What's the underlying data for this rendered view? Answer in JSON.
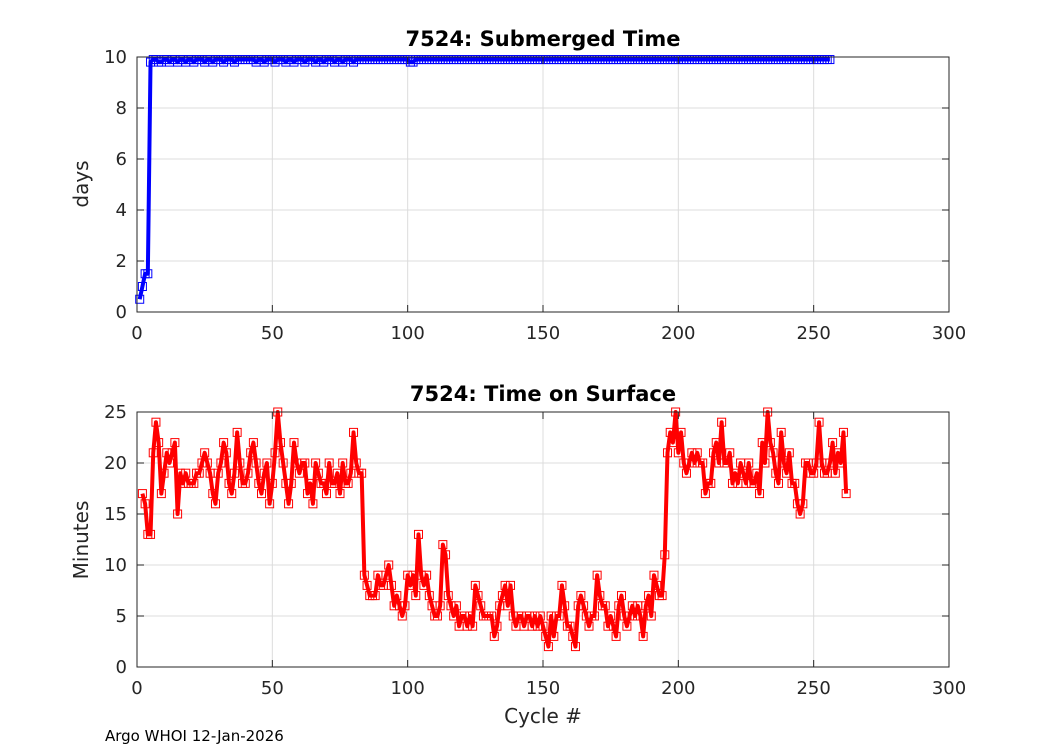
{
  "footer": "Argo WHOI 12-Jan-2026",
  "chart_data": [
    {
      "type": "line",
      "title": "7524: Submerged Time",
      "xlabel": "",
      "ylabel": "days",
      "xlim": [
        0,
        300
      ],
      "ylim": [
        0,
        10
      ],
      "xticks": [
        "0",
        "50",
        "100",
        "150",
        "200",
        "250",
        "300"
      ],
      "yticks": [
        "0",
        "2",
        "4",
        "6",
        "8",
        "10"
      ],
      "grid": true,
      "color": "#0000ff",
      "marker": "square",
      "series": [
        {
          "x_start": 1,
          "values": [
            0.5,
            1.0,
            1.5,
            1.5,
            9.8,
            9.9,
            9.9,
            9.8,
            9.8,
            9.9,
            9.9,
            9.8,
            9.9,
            9.9,
            9.8,
            9.9,
            9.9,
            9.8,
            9.9,
            9.9,
            9.8,
            9.9,
            9.9,
            9.9,
            9.8,
            9.9,
            9.9,
            9.8,
            9.9,
            9.9,
            9.9,
            9.8,
            9.9,
            9.9,
            9.9,
            9.8,
            9.9,
            9.9,
            9.9,
            9.9,
            9.9,
            9.9,
            9.9,
            9.8,
            9.9,
            9.9,
            9.8,
            9.9,
            9.9,
            9.9,
            9.8,
            9.9,
            9.9,
            9.9,
            9.8,
            9.9,
            9.9,
            9.8,
            9.9,
            9.9,
            9.9,
            9.8,
            9.9,
            9.9,
            9.9,
            9.8,
            9.9,
            9.9,
            9.8,
            9.9,
            9.9,
            9.9,
            9.8,
            9.9,
            9.9,
            9.8,
            9.9,
            9.9,
            9.9,
            9.8,
            9.9,
            9.9,
            9.9,
            9.9,
            9.9,
            9.9,
            9.9,
            9.9,
            9.9,
            9.9,
            9.9,
            9.9,
            9.9,
            9.9,
            9.9,
            9.9,
            9.9,
            9.9,
            9.9,
            9.9,
            9.8,
            9.8,
            9.9,
            9.9,
            9.9,
            9.9,
            9.9,
            9.9,
            9.9,
            9.9,
            9.9,
            9.9,
            9.9,
            9.9,
            9.9,
            9.9,
            9.9,
            9.9,
            9.9,
            9.9,
            9.9,
            9.9,
            9.9,
            9.9,
            9.9,
            9.9,
            9.9,
            9.9,
            9.9,
            9.9,
            9.9,
            9.9,
            9.9,
            9.9,
            9.9,
            9.9,
            9.9,
            9.9,
            9.9,
            9.9,
            9.9,
            9.9,
            9.9,
            9.9,
            9.9,
            9.9,
            9.9,
            9.9,
            9.9,
            9.9,
            9.9,
            9.9,
            9.9,
            9.9,
            9.9,
            9.9,
            9.9,
            9.9,
            9.9,
            9.9,
            9.9,
            9.9,
            9.9,
            9.9,
            9.9,
            9.9,
            9.9,
            9.9,
            9.9,
            9.9,
            9.9,
            9.9,
            9.9,
            9.9,
            9.9,
            9.9,
            9.9,
            9.9,
            9.9,
            9.9,
            9.9,
            9.9,
            9.9,
            9.9,
            9.9,
            9.9,
            9.9,
            9.9,
            9.9,
            9.9,
            9.9,
            9.9,
            9.9,
            9.9,
            9.9,
            9.9,
            9.9,
            9.9,
            9.9,
            9.9,
            9.9,
            9.9,
            9.9,
            9.9,
            9.9,
            9.9,
            9.9,
            9.9,
            9.9,
            9.9,
            9.9,
            9.9,
            9.9,
            9.9,
            9.9,
            9.9,
            9.9,
            9.9,
            9.9,
            9.9,
            9.9,
            9.9,
            9.9,
            9.9,
            9.9,
            9.9,
            9.9,
            9.9,
            9.9,
            9.9,
            9.9,
            9.9,
            9.9,
            9.9,
            9.9,
            9.9,
            9.9,
            9.9,
            9.9,
            9.9,
            9.9,
            9.9,
            9.9,
            9.9,
            9.9,
            9.9,
            9.9,
            9.9,
            9.9,
            9.9,
            9.9,
            9.9,
            9.9,
            9.9,
            9.9,
            9.9
          ]
        }
      ]
    },
    {
      "type": "line",
      "title": "7524: Time on Surface",
      "xlabel": "Cycle #",
      "ylabel": "Minutes",
      "xlim": [
        0,
        300
      ],
      "ylim": [
        0,
        25
      ],
      "xticks": [
        "0",
        "50",
        "100",
        "150",
        "200",
        "250",
        "300"
      ],
      "yticks": [
        "0",
        "5",
        "10",
        "15",
        "20",
        "25"
      ],
      "grid": true,
      "color": "#ff0000",
      "marker": "square",
      "series": [
        {
          "x_start": 2,
          "values": [
            17,
            16,
            13,
            13,
            21,
            24,
            22,
            17,
            19,
            21,
            20,
            21,
            22,
            15,
            19,
            18,
            19,
            18,
            18,
            18,
            19,
            19,
            20,
            21,
            20,
            19,
            17,
            16,
            19,
            20,
            22,
            21,
            18,
            17,
            19,
            23,
            20,
            18,
            18,
            19,
            21,
            22,
            20,
            18,
            17,
            19,
            20,
            16,
            18,
            21,
            25,
            22,
            20,
            18,
            16,
            18,
            22,
            20,
            19,
            20,
            20,
            17,
            18,
            16,
            20,
            19,
            18,
            18,
            17,
            20,
            18,
            18,
            19,
            17,
            20,
            18,
            18,
            19,
            23,
            20,
            19,
            19,
            9,
            8,
            7,
            7,
            7,
            9,
            8,
            8,
            9,
            10,
            8,
            6,
            7,
            6,
            5,
            6,
            9,
            8,
            9,
            7,
            13,
            9,
            8,
            9,
            7,
            6,
            5,
            5,
            6,
            12,
            11,
            7,
            6,
            5,
            6,
            4,
            5,
            5,
            4,
            5,
            4,
            8,
            7,
            6,
            5,
            5,
            5,
            5,
            3,
            4,
            6,
            7,
            8,
            6,
            8,
            5,
            4,
            5,
            5,
            4,
            5,
            5,
            4,
            5,
            4,
            5,
            4,
            3,
            2,
            5,
            3,
            5,
            5,
            8,
            6,
            4,
            4,
            3,
            2,
            6,
            7,
            6,
            5,
            4,
            5,
            5,
            9,
            7,
            6,
            6,
            4,
            5,
            4,
            3,
            6,
            7,
            5,
            4,
            5,
            6,
            5,
            6,
            5,
            3,
            6,
            7,
            5,
            9,
            8,
            7,
            7,
            11,
            21,
            23,
            22,
            25,
            21,
            23,
            20,
            19,
            20,
            21,
            20,
            21,
            20,
            20,
            17,
            18,
            18,
            21,
            22,
            20,
            24,
            20,
            20,
            21,
            18,
            19,
            18,
            20,
            19,
            18,
            20,
            18,
            18,
            19,
            17,
            22,
            20,
            25,
            22,
            21,
            19,
            18,
            23,
            20,
            19,
            21,
            18,
            18,
            16,
            15,
            16,
            20,
            20,
            19,
            19,
            20,
            24,
            20,
            19,
            19,
            20,
            22,
            19,
            21,
            20,
            23,
            17
          ]
        }
      ]
    }
  ]
}
